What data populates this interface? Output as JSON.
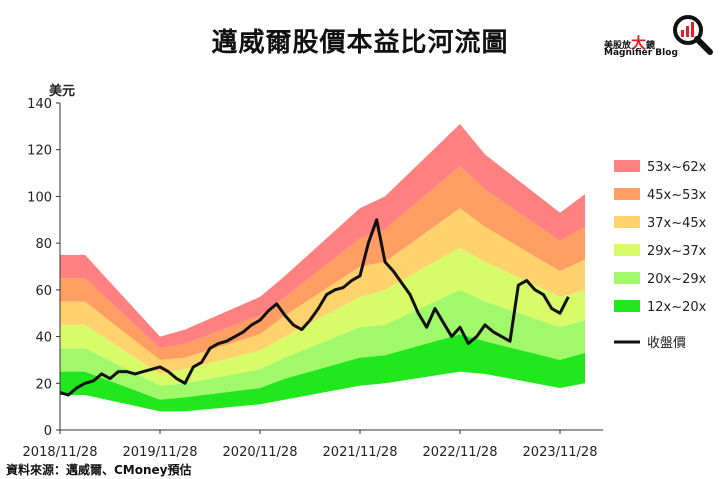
{
  "logo": {
    "cn_prefix": "美股放",
    "cn_big": "大",
    "cn_suffix": "鏡",
    "en": "Magnifier Blog"
  },
  "source": "資料來源：邁威爾、CMoney預估",
  "chart_data": {
    "type": "area",
    "title": "邁威爾股價本益比河流圖",
    "ylabel": "美元",
    "ylim": [
      0,
      140
    ],
    "yticks": [
      0,
      20,
      40,
      60,
      80,
      100,
      120,
      140
    ],
    "xticks": [
      "2018/11/28",
      "2019/11/28",
      "2020/11/28",
      "2021/11/28",
      "2022/11/28",
      "2023/11/28"
    ],
    "grid": false,
    "legend_position": "right",
    "x": [
      "2018/11",
      "2019/02",
      "2019/11",
      "2020/02",
      "2020/11",
      "2021/02",
      "2021/11",
      "2022/02",
      "2022/11",
      "2023/02",
      "2023/11",
      "2024/02"
    ],
    "bands": [
      {
        "name": "12x~20x",
        "color": "#20e81c",
        "lower": [
          15,
          15,
          8,
          8,
          11,
          13,
          19,
          20,
          25,
          24,
          18,
          20
        ],
        "upper": [
          25,
          25,
          13,
          14,
          18,
          22,
          31,
          32,
          41,
          38,
          30,
          33
        ]
      },
      {
        "name": "20x~29x",
        "color": "#a0f86a",
        "lower": [
          25,
          25,
          13,
          14,
          18,
          22,
          31,
          32,
          41,
          38,
          30,
          33
        ],
        "upper": [
          35,
          35,
          19,
          20,
          26,
          31,
          44,
          45,
          60,
          55,
          44,
          47
        ]
      },
      {
        "name": "29x~37x",
        "color": "#d8fb6a",
        "lower": [
          35,
          35,
          19,
          20,
          26,
          31,
          44,
          45,
          60,
          55,
          44,
          47
        ],
        "upper": [
          45,
          45,
          24,
          26,
          34,
          40,
          57,
          60,
          78,
          72,
          57,
          60
        ]
      },
      {
        "name": "37x~45x",
        "color": "#ffd26e",
        "lower": [
          45,
          45,
          24,
          26,
          34,
          40,
          57,
          60,
          78,
          72,
          57,
          60
        ],
        "upper": [
          55,
          55,
          30,
          31,
          41,
          49,
          70,
          72,
          95,
          87,
          68,
          73
        ]
      },
      {
        "name": "45x~53x",
        "color": "#ff9e62",
        "lower": [
          55,
          55,
          30,
          31,
          41,
          49,
          70,
          72,
          95,
          87,
          68,
          73
        ],
        "upper": [
          65,
          65,
          35,
          37,
          49,
          57,
          82,
          86,
          113,
          103,
          81,
          87
        ]
      },
      {
        "name": "53x~62x",
        "color": "#ff8080",
        "lower": [
          65,
          65,
          35,
          37,
          49,
          57,
          82,
          86,
          113,
          103,
          81,
          87
        ],
        "upper": [
          75,
          75,
          40,
          43,
          57,
          66,
          95,
          100,
          131,
          118,
          93,
          101
        ]
      }
    ],
    "series": [
      {
        "name": "收盤價",
        "color": "#111111",
        "x": [
          "2018/11",
          "2018/12",
          "2019/01",
          "2019/02",
          "2019/03",
          "2019/04",
          "2019/05",
          "2019/06",
          "2019/07",
          "2019/08",
          "2019/09",
          "2019/10",
          "2019/11",
          "2019/12",
          "2020/01",
          "2020/02",
          "2020/03",
          "2020/04",
          "2020/05",
          "2020/06",
          "2020/07",
          "2020/08",
          "2020/09",
          "2020/10",
          "2020/11",
          "2020/12",
          "2021/01",
          "2021/02",
          "2021/03",
          "2021/04",
          "2021/05",
          "2021/06",
          "2021/07",
          "2021/08",
          "2021/09",
          "2021/10",
          "2021/11",
          "2021/12",
          "2022/01",
          "2022/02",
          "2022/03",
          "2022/04",
          "2022/05",
          "2022/06",
          "2022/07",
          "2022/08",
          "2022/09",
          "2022/10",
          "2022/11",
          "2022/12",
          "2023/01",
          "2023/02",
          "2023/03",
          "2023/04",
          "2023/05",
          "2023/06",
          "2023/07",
          "2023/08",
          "2023/09",
          "2023/10",
          "2023/11",
          "2023/12"
        ],
        "values": [
          16,
          15,
          18,
          20,
          21,
          24,
          22,
          25,
          25,
          24,
          25,
          26,
          27,
          25,
          22,
          20,
          27,
          29,
          35,
          37,
          38,
          40,
          42,
          45,
          47,
          51,
          54,
          49,
          45,
          43,
          47,
          52,
          58,
          60,
          61,
          64,
          66,
          80,
          90,
          72,
          68,
          63,
          58,
          50,
          44,
          52,
          46,
          40,
          44,
          37,
          40,
          45,
          42,
          40,
          38,
          62,
          64,
          60,
          58,
          52,
          50,
          57
        ]
      }
    ]
  }
}
